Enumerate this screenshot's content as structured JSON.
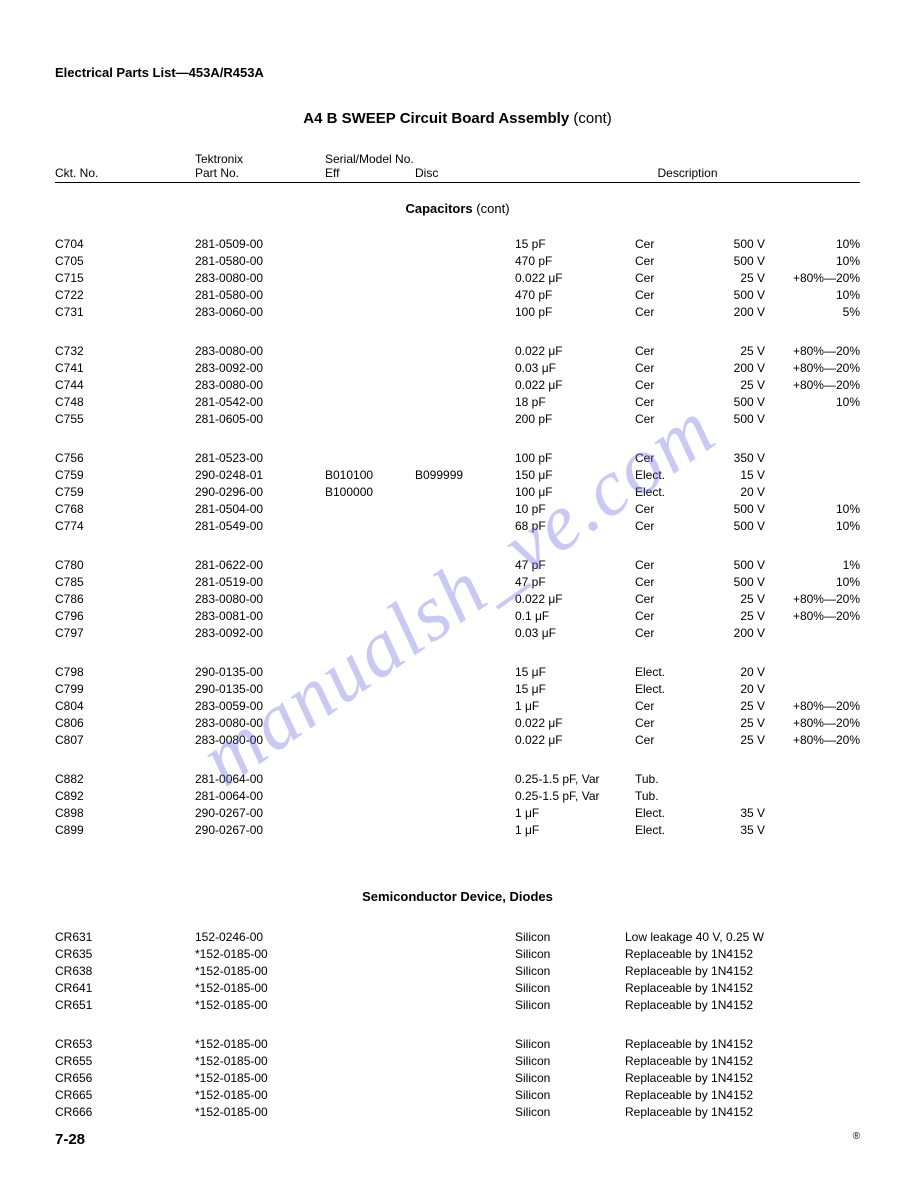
{
  "header": "Electrical Parts List—453A/R453A",
  "title_prefix": "A4   B SWEEP Circuit Board Assembly",
  "title_cont": "(cont)",
  "columns": {
    "ckt": "Ckt. No.",
    "tek1": "Tektronix",
    "tek2": "Part No.",
    "serial1": "Serial/Model No.",
    "eff": "Eff",
    "disc": "Disc",
    "desc": "Description"
  },
  "section_cap": "Capacitors",
  "section_cap_cont": "(cont)",
  "section_diode": "Semiconductor Device, Diodes",
  "microF": "μF",
  "blocks": [
    [
      {
        "ckt": "C704",
        "part": "281-0509-00",
        "eff": "",
        "disc": "",
        "val": "15 pF",
        "type": "Cer",
        "volt": "500 V",
        "tol": "10%"
      },
      {
        "ckt": "C705",
        "part": "281-0580-00",
        "eff": "",
        "disc": "",
        "val": "470 pF",
        "type": "Cer",
        "volt": "500 V",
        "tol": "10%"
      },
      {
        "ckt": "C715",
        "part": "283-0080-00",
        "eff": "",
        "disc": "",
        "val": "0.022 μF",
        "type": "Cer",
        "volt": "25 V",
        "tol": "+80%—20%"
      },
      {
        "ckt": "C722",
        "part": "281-0580-00",
        "eff": "",
        "disc": "",
        "val": "470 pF",
        "type": "Cer",
        "volt": "500 V",
        "tol": "10%"
      },
      {
        "ckt": "C731",
        "part": "283-0060-00",
        "eff": "",
        "disc": "",
        "val": "100 pF",
        "type": "Cer",
        "volt": "200 V",
        "tol": "5%"
      }
    ],
    [
      {
        "ckt": "C732",
        "part": "283-0080-00",
        "eff": "",
        "disc": "",
        "val": "0.022 μF",
        "type": "Cer",
        "volt": "25 V",
        "tol": "+80%—20%"
      },
      {
        "ckt": "C741",
        "part": "283-0092-00",
        "eff": "",
        "disc": "",
        "val": "0.03 μF",
        "type": "Cer",
        "volt": "200 V",
        "tol": "+80%—20%"
      },
      {
        "ckt": "C744",
        "part": "283-0080-00",
        "eff": "",
        "disc": "",
        "val": "0.022 μF",
        "type": "Cer",
        "volt": "25 V",
        "tol": "+80%—20%"
      },
      {
        "ckt": "C748",
        "part": "281-0542-00",
        "eff": "",
        "disc": "",
        "val": "18 pF",
        "type": "Cer",
        "volt": "500 V",
        "tol": "10%"
      },
      {
        "ckt": "C755",
        "part": "281-0605-00",
        "eff": "",
        "disc": "",
        "val": "200 pF",
        "type": "Cer",
        "volt": "500 V",
        "tol": ""
      }
    ],
    [
      {
        "ckt": "C756",
        "part": "281-0523-00",
        "eff": "",
        "disc": "",
        "val": "100 pF",
        "type": "Cer",
        "volt": "350 V",
        "tol": ""
      },
      {
        "ckt": "C759",
        "part": "290-0248-01",
        "eff": "B010100",
        "disc": "B099999",
        "val": "150 μF",
        "type": "Elect.",
        "volt": "15 V",
        "tol": ""
      },
      {
        "ckt": "C759",
        "part": "290-0296-00",
        "eff": "B100000",
        "disc": "",
        "val": "100 μF",
        "type": "Elect.",
        "volt": "20 V",
        "tol": ""
      },
      {
        "ckt": "C768",
        "part": "281-0504-00",
        "eff": "",
        "disc": "",
        "val": "10 pF",
        "type": "Cer",
        "volt": "500 V",
        "tol": "10%"
      },
      {
        "ckt": "C774",
        "part": "281-0549-00",
        "eff": "",
        "disc": "",
        "val": "68 pF",
        "type": "Cer",
        "volt": "500 V",
        "tol": "10%"
      }
    ],
    [
      {
        "ckt": "C780",
        "part": "281-0622-00",
        "eff": "",
        "disc": "",
        "val": "47 pF",
        "type": "Cer",
        "volt": "500 V",
        "tol": "1%"
      },
      {
        "ckt": "C785",
        "part": "281-0519-00",
        "eff": "",
        "disc": "",
        "val": "47 pF",
        "type": "Cer",
        "volt": "500 V",
        "tol": "10%"
      },
      {
        "ckt": "C786",
        "part": "283-0080-00",
        "eff": "",
        "disc": "",
        "val": "0.022 μF",
        "type": "Cer",
        "volt": "25 V",
        "tol": "+80%—20%"
      },
      {
        "ckt": "C796",
        "part": "283-0081-00",
        "eff": "",
        "disc": "",
        "val": "0.1 μF",
        "type": "Cer",
        "volt": "25 V",
        "tol": "+80%—20%"
      },
      {
        "ckt": "C797",
        "part": "283-0092-00",
        "eff": "",
        "disc": "",
        "val": "0.03 μF",
        "type": "Cer",
        "volt": "200 V",
        "tol": ""
      }
    ],
    [
      {
        "ckt": "C798",
        "part": "290-0135-00",
        "eff": "",
        "disc": "",
        "val": "15 μF",
        "type": "Elect.",
        "volt": "20 V",
        "tol": ""
      },
      {
        "ckt": "C799",
        "part": "290-0135-00",
        "eff": "",
        "disc": "",
        "val": "15 μF",
        "type": "Elect.",
        "volt": "20 V",
        "tol": ""
      },
      {
        "ckt": "C804",
        "part": "283-0059-00",
        "eff": "",
        "disc": "",
        "val": "1 μF",
        "type": "Cer",
        "volt": "25 V",
        "tol": "+80%—20%"
      },
      {
        "ckt": "C806",
        "part": "283-0080-00",
        "eff": "",
        "disc": "",
        "val": "0.022 μF",
        "type": "Cer",
        "volt": "25 V",
        "tol": "+80%—20%"
      },
      {
        "ckt": "C807",
        "part": "283-0080-00",
        "eff": "",
        "disc": "",
        "val": "0.022 μF",
        "type": "Cer",
        "volt": "25 V",
        "tol": "+80%—20%"
      }
    ],
    [
      {
        "ckt": "C882",
        "part": "281-0064-00",
        "eff": "",
        "disc": "",
        "val": "0.25-1.5 pF, Var",
        "type": "Tub.",
        "volt": "",
        "tol": ""
      },
      {
        "ckt": "C892",
        "part": "281-0064-00",
        "eff": "",
        "disc": "",
        "val": "0.25-1.5 pF, Var",
        "type": "Tub.",
        "volt": "",
        "tol": ""
      },
      {
        "ckt": "C898",
        "part": "290-0267-00",
        "eff": "",
        "disc": "",
        "val": "1 μF",
        "type": "Elect.",
        "volt": "35 V",
        "tol": ""
      },
      {
        "ckt": "C899",
        "part": "290-0267-00",
        "eff": "",
        "disc": "",
        "val": "1 μF",
        "type": "Elect.",
        "volt": "35 V",
        "tol": ""
      }
    ]
  ],
  "diode_blocks": [
    [
      {
        "ckt": "CR631",
        "part": "152-0246-00",
        "val": "Silicon",
        "desc": "Low leakage 40 V, 0.25 W"
      },
      {
        "ckt": "CR635",
        "part": "*152-0185-00",
        "val": "Silicon",
        "desc": "Replaceable by 1N4152"
      },
      {
        "ckt": "CR638",
        "part": "*152-0185-00",
        "val": "Silicon",
        "desc": "Replaceable by 1N4152"
      },
      {
        "ckt": "CR641",
        "part": "*152-0185-00",
        "val": "Silicon",
        "desc": "Replaceable by 1N4152"
      },
      {
        "ckt": "CR651",
        "part": "*152-0185-00",
        "val": "Silicon",
        "desc": "Replaceable by 1N4152"
      }
    ],
    [
      {
        "ckt": "CR653",
        "part": "*152-0185-00",
        "val": "Silicon",
        "desc": "Replaceable by 1N4152"
      },
      {
        "ckt": "CR655",
        "part": "*152-0185-00",
        "val": "Silicon",
        "desc": "Replaceable by 1N4152"
      },
      {
        "ckt": "CR656",
        "part": "*152-0185-00",
        "val": "Silicon",
        "desc": "Replaceable by 1N4152"
      },
      {
        "ckt": "CR665",
        "part": "*152-0185-00",
        "val": "Silicon",
        "desc": "Replaceable by 1N4152"
      },
      {
        "ckt": "CR666",
        "part": "*152-0185-00",
        "val": "Silicon",
        "desc": "Replaceable by 1N4152"
      }
    ]
  ],
  "page_num": "7-28",
  "watermark": "manualsh_ve.com"
}
